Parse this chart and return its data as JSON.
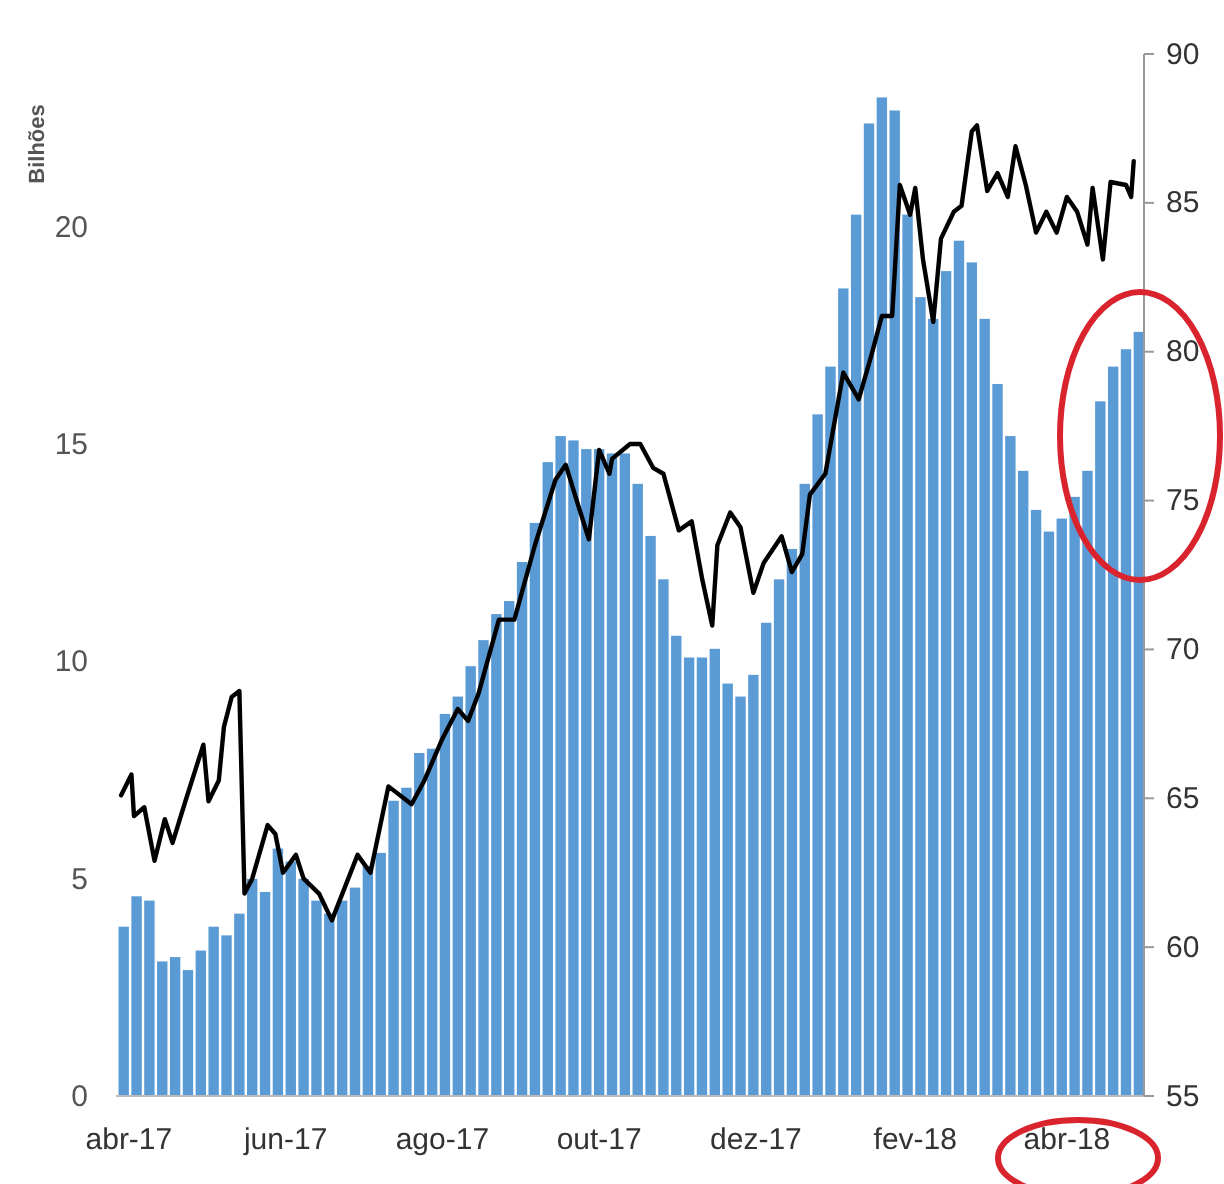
{
  "chart_data": {
    "type": "bar",
    "ylabel": "Bilhões",
    "x": [
      "2017-03-30",
      "2017-04-04",
      "2017-04-09",
      "2017-04-14",
      "2017-04-19",
      "2017-04-24",
      "2017-04-29",
      "2017-05-04",
      "2017-05-09",
      "2017-05-14",
      "2017-05-19",
      "2017-05-24",
      "2017-05-29",
      "2017-06-03",
      "2017-06-08",
      "2017-06-13",
      "2017-06-18",
      "2017-06-23",
      "2017-06-28",
      "2017-07-03",
      "2017-07-08",
      "2017-07-13",
      "2017-07-18",
      "2017-07-23",
      "2017-07-28",
      "2017-08-02",
      "2017-08-07",
      "2017-08-12",
      "2017-08-17",
      "2017-08-22",
      "2017-08-27",
      "2017-09-01",
      "2017-09-06",
      "2017-09-11",
      "2017-09-16",
      "2017-09-21",
      "2017-09-26",
      "2017-10-01",
      "2017-10-06",
      "2017-10-11",
      "2017-10-16",
      "2017-10-21",
      "2017-10-26",
      "2017-10-31",
      "2017-11-05",
      "2017-11-10",
      "2017-11-15",
      "2017-11-20",
      "2017-11-25",
      "2017-11-30",
      "2017-12-05",
      "2017-12-10",
      "2017-12-15",
      "2017-12-20",
      "2017-12-25",
      "2017-12-30",
      "2018-01-04",
      "2018-01-09",
      "2018-01-14",
      "2018-01-19",
      "2018-01-24",
      "2018-01-29",
      "2018-02-03",
      "2018-02-08",
      "2018-02-13",
      "2018-02-18",
      "2018-02-23",
      "2018-02-28",
      "2018-03-05",
      "2018-03-10",
      "2018-03-15",
      "2018-03-20",
      "2018-03-25",
      "2018-03-30",
      "2018-04-04",
      "2018-04-09",
      "2018-04-14",
      "2018-04-19",
      "2018-04-24",
      "2018-04-29"
    ],
    "series": [
      {
        "color": "#5b9bd5",
        "values": [
          3.9,
          4.6,
          4.5,
          3.1,
          3.2,
          2.9,
          3.35,
          3.9,
          3.7,
          4.2,
          5.0,
          4.7,
          5.7,
          5.4,
          5.0,
          4.5,
          4.2,
          4.5,
          4.8,
          5.3,
          5.6,
          6.8,
          7.1,
          7.9,
          8.0,
          8.8,
          9.2,
          9.9,
          10.5,
          11.1,
          11.4,
          12.3,
          13.2,
          14.6,
          15.2,
          15.1,
          14.9,
          14.9,
          14.8,
          14.8,
          14.1,
          12.9,
          11.9,
          10.6,
          10.1,
          10.1,
          10.3,
          9.5,
          9.2,
          9.7,
          10.9,
          11.9,
          12.6,
          14.1,
          15.7,
          16.8,
          18.6,
          20.3,
          22.4,
          23.0,
          22.7,
          20.3,
          18.4,
          17.9,
          19.0,
          19.7,
          19.2,
          17.9,
          16.4,
          15.2,
          14.4,
          13.5,
          13.0,
          13.3,
          13.8,
          14.4,
          16.0,
          16.8,
          17.2,
          17.6
        ]
      },
      {
        "type": "line",
        "axis": "y2",
        "color": "#000000",
        "x": [
          "2017-03-29",
          "2017-04-02",
          "2017-04-03",
          "2017-04-07",
          "2017-04-11",
          "2017-04-15",
          "2017-04-18",
          "2017-04-23",
          "2017-04-30",
          "2017-05-02",
          "2017-05-06",
          "2017-05-08",
          "2017-05-11",
          "2017-05-14",
          "2017-05-16",
          "2017-05-19",
          "2017-05-25",
          "2017-05-28",
          "2017-05-31",
          "2017-06-05",
          "2017-06-08",
          "2017-06-14",
          "2017-06-19",
          "2017-06-24",
          "2017-06-29",
          "2017-07-04",
          "2017-07-11",
          "2017-07-20",
          "2017-07-25",
          "2017-08-01",
          "2017-08-07",
          "2017-08-11",
          "2017-08-15",
          "2017-08-23",
          "2017-08-29",
          "2017-09-06",
          "2017-09-14",
          "2017-09-18",
          "2017-09-23",
          "2017-09-27",
          "2017-10-01",
          "2017-10-05",
          "2017-10-06",
          "2017-10-13",
          "2017-10-17",
          "2017-10-22",
          "2017-10-26",
          "2017-11-01",
          "2017-11-06",
          "2017-11-10",
          "2017-11-14",
          "2017-11-16",
          "2017-11-21",
          "2017-11-25",
          "2017-11-30",
          "2017-12-04",
          "2017-12-11",
          "2017-12-15",
          "2017-12-19",
          "2017-12-22",
          "2017-12-28",
          "2018-01-04",
          "2018-01-10",
          "2018-01-15",
          "2018-01-19",
          "2018-01-23",
          "2018-01-26",
          "2018-01-30",
          "2018-02-01",
          "2018-02-04",
          "2018-02-08",
          "2018-02-11",
          "2018-02-16",
          "2018-02-19",
          "2018-02-23",
          "2018-02-25",
          "2018-03-01",
          "2018-03-05",
          "2018-03-09",
          "2018-03-12",
          "2018-03-16",
          "2018-03-20",
          "2018-03-24",
          "2018-03-28",
          "2018-04-01",
          "2018-04-05",
          "2018-04-09",
          "2018-04-11",
          "2018-04-15",
          "2018-04-18",
          "2018-04-24",
          "2018-04-26",
          "2018-04-27"
        ],
        "values": [
          65.1,
          65.8,
          64.4,
          64.7,
          62.9,
          64.3,
          63.5,
          64.9,
          66.8,
          64.9,
          65.6,
          67.4,
          68.4,
          68.6,
          61.8,
          62.3,
          64.1,
          63.8,
          62.5,
          63.1,
          62.3,
          61.8,
          60.9,
          62.0,
          63.1,
          62.5,
          65.4,
          64.8,
          65.6,
          67.0,
          68.0,
          67.6,
          68.5,
          71.0,
          71.0,
          73.5,
          75.7,
          76.2,
          74.8,
          73.7,
          76.7,
          75.9,
          76.4,
          76.9,
          76.9,
          76.1,
          75.9,
          74.0,
          74.3,
          72.4,
          70.8,
          73.5,
          74.6,
          74.1,
          71.9,
          72.9,
          73.8,
          72.6,
          73.2,
          75.2,
          75.9,
          79.3,
          78.4,
          79.9,
          81.2,
          81.2,
          85.6,
          84.6,
          85.5,
          83.1,
          81.0,
          83.8,
          84.7,
          84.9,
          87.4,
          87.6,
          85.4,
          86.0,
          85.2,
          86.9,
          85.6,
          84.0,
          84.7,
          84.0,
          85.2,
          84.7,
          83.6,
          85.5,
          83.1,
          85.7,
          85.6,
          85.2,
          86.4
        ]
      }
    ],
    "xlim": [
      "2017-03-27",
      "2018-05-01"
    ],
    "xticks": [
      {
        "value": "2017-04-01",
        "label": "abr-17"
      },
      {
        "value": "2017-06-01",
        "label": "jun-17"
      },
      {
        "value": "2017-08-01",
        "label": "ago-17"
      },
      {
        "value": "2017-10-01",
        "label": "out-17"
      },
      {
        "value": "2017-12-01",
        "label": "dez-17"
      },
      {
        "value": "2018-02-01",
        "label": "fev-18"
      },
      {
        "value": "2018-04-01",
        "label": "abr-18"
      }
    ],
    "ylim": [
      0,
      24
    ],
    "yticks": [
      0,
      5,
      10,
      15,
      20
    ],
    "y2lim": [
      55,
      90
    ],
    "y2ticks": [
      55,
      60,
      65,
      70,
      75,
      80,
      85,
      90
    ],
    "grid": false
  }
}
